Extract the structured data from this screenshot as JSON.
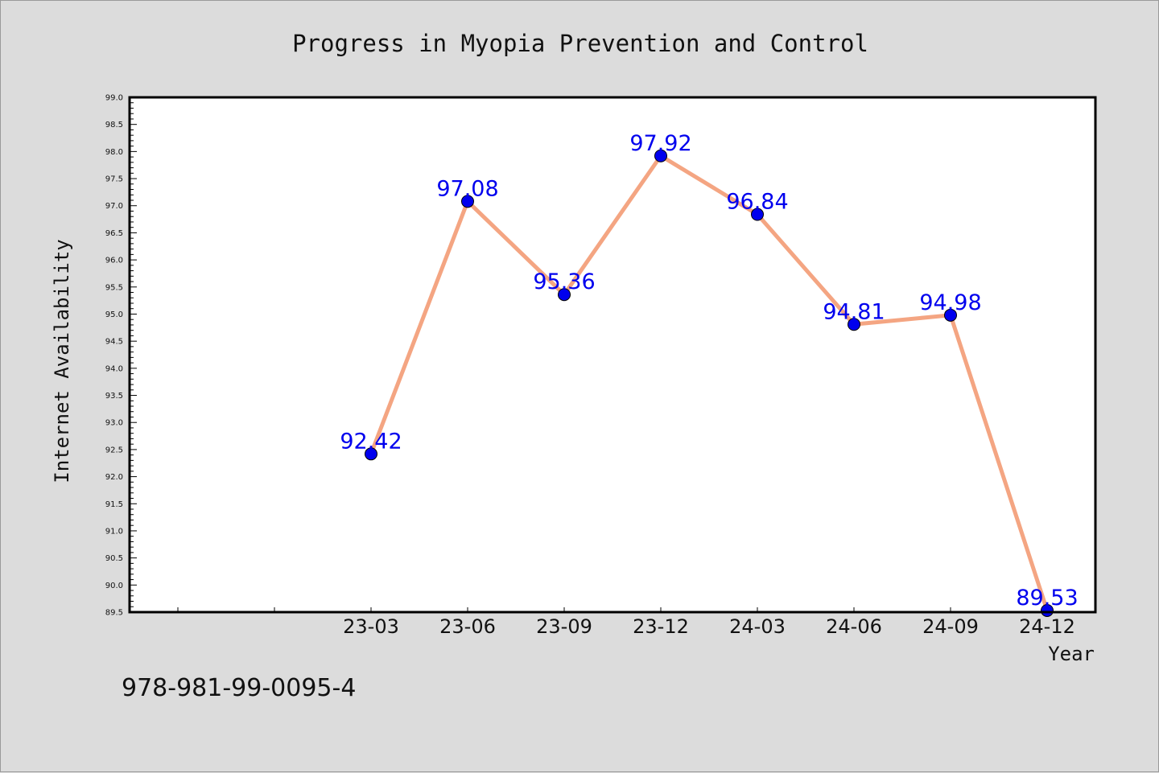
{
  "chart_data": {
    "type": "line",
    "title": "Progress in Myopia Prevention and Control",
    "xlabel": "Year",
    "ylabel": "Internet Availability",
    "categories": [
      "23-03",
      "23-06",
      "23-09",
      "23-12",
      "24-03",
      "24-06",
      "24-09",
      "24-12"
    ],
    "series": [
      {
        "values": [
          92.42,
          97.08,
          95.36,
          97.92,
          96.84,
          94.81,
          94.98,
          89.53
        ],
        "value_labels": [
          "92.42",
          "97.08",
          "95.36",
          "97.92",
          "96.84",
          "94.81",
          "94.98",
          "89.53"
        ],
        "line_color": "#f4a582",
        "marker_color": "#0000ee"
      }
    ],
    "ylim": [
      89.5,
      99.0
    ],
    "yticks": [
      "89.5",
      "90.0",
      "90.5",
      "91.0",
      "91.5",
      "92.0",
      "92.5",
      "93.0",
      "93.5",
      "94.0",
      "94.5",
      "95.0",
      "95.5",
      "96.0",
      "96.5",
      "97.0",
      "97.5",
      "98.0",
      "98.5",
      "99.0"
    ],
    "grid": false,
    "legend": "none",
    "plot_background": "#ffffff",
    "page_background": "#dcdcdc"
  },
  "footer": {
    "isbn": "978-981-99-0095-4"
  }
}
